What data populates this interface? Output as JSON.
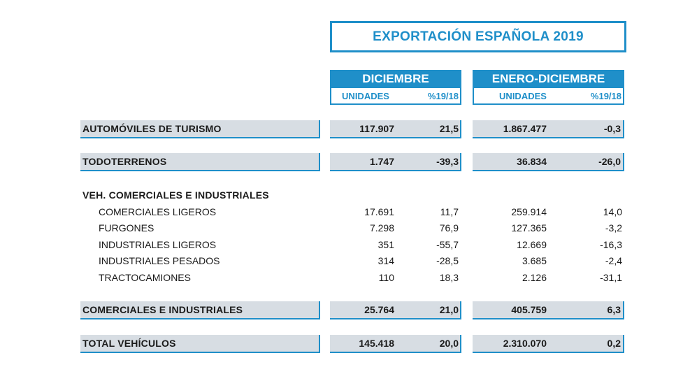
{
  "title": "EXPORTACIÓN ESPAÑOLA 2019",
  "periods": [
    {
      "label": "DICIEMBRE",
      "col_units": "UNIDADES",
      "col_pct": "%19/18"
    },
    {
      "label": "ENERO-DICIEMBRE",
      "col_units": "UNIDADES",
      "col_pct": "%19/18"
    }
  ],
  "rows": {
    "turismo": {
      "label": "AUTOMÓVILES DE TURISMO",
      "dic_units": "117.907",
      "dic_pct": "21,5",
      "ytd_units": "1.867.477",
      "ytd_pct": "-0,3"
    },
    "todoterrenos": {
      "label": "TODOTERRENOS",
      "dic_units": "1.747",
      "dic_pct": "-39,3",
      "ytd_units": "36.834",
      "ytd_pct": "-26,0"
    },
    "section_title": "VEH. COMERCIALES E INDUSTRIALES",
    "sub": [
      {
        "label": "COMERCIALES LIGEROS",
        "dic_units": "17.691",
        "dic_pct": "11,7",
        "ytd_units": "259.914",
        "ytd_pct": "14,0"
      },
      {
        "label": "FURGONES",
        "dic_units": "7.298",
        "dic_pct": "76,9",
        "ytd_units": "127.365",
        "ytd_pct": "-3,2"
      },
      {
        "label": "INDUSTRIALES LIGEROS",
        "dic_units": "351",
        "dic_pct": "-55,7",
        "ytd_units": "12.669",
        "ytd_pct": "-16,3"
      },
      {
        "label": "INDUSTRIALES PESADOS",
        "dic_units": "314",
        "dic_pct": "-28,5",
        "ytd_units": "3.685",
        "ytd_pct": "-2,4"
      },
      {
        "label": "TRACTOCAMIONES",
        "dic_units": "110",
        "dic_pct": "18,3",
        "ytd_units": "2.126",
        "ytd_pct": "-31,1"
      }
    ],
    "comerciales": {
      "label": "COMERCIALES E INDUSTRIALES",
      "dic_units": "25.764",
      "dic_pct": "21,0",
      "ytd_units": "405.759",
      "ytd_pct": "6,3"
    },
    "total": {
      "label": "TOTAL VEHÍCULOS",
      "dic_units": "145.418",
      "dic_pct": "20,0",
      "ytd_units": "2.310.070",
      "ytd_pct": "0,2"
    }
  }
}
